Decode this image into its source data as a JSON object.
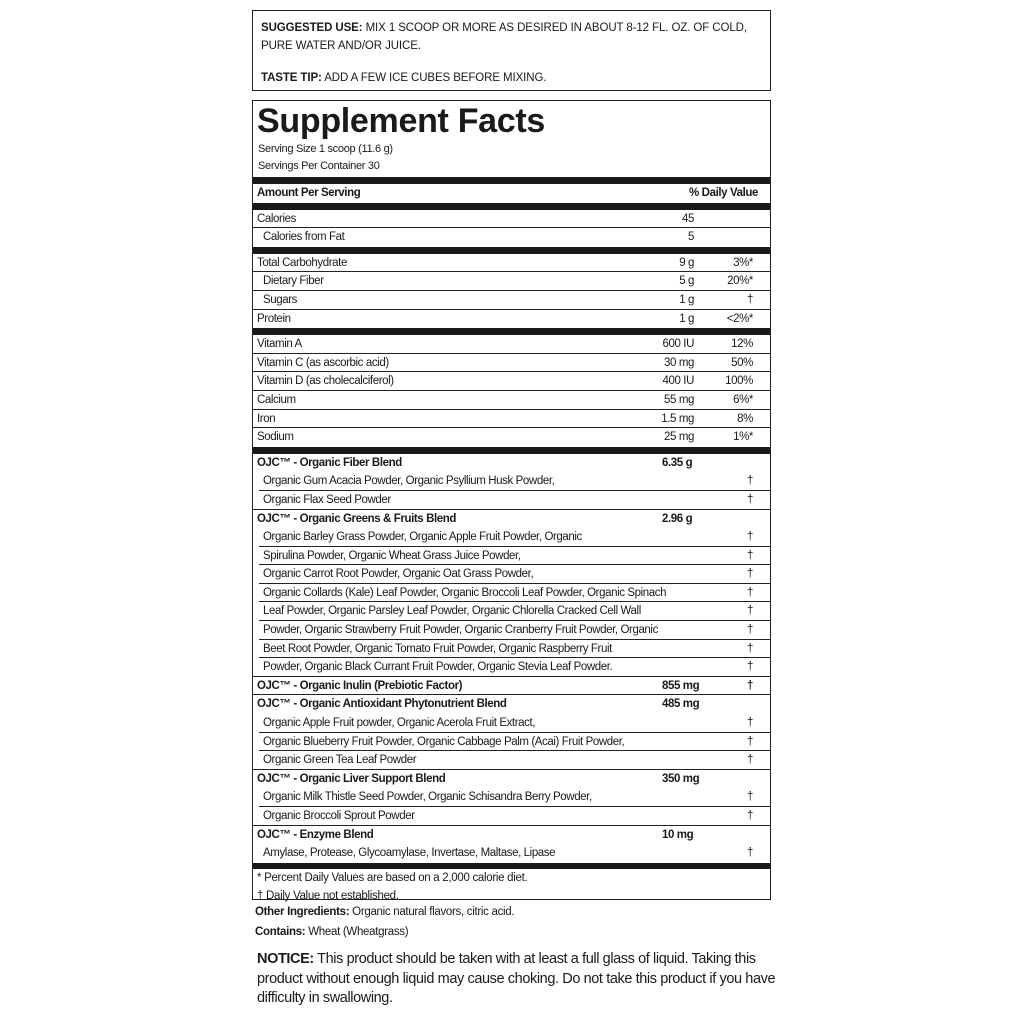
{
  "suggested_use": {
    "label": "SUGGESTED USE:",
    "text": " MIX 1 SCOOP OR MORE AS DESIRED IN ABOUT 8-12 FL. OZ. OF COLD, PURE WATER AND/OR JUICE."
  },
  "taste_tip": {
    "label": "TASTE TIP:",
    "text": " ADD A FEW ICE CUBES BEFORE MIXING."
  },
  "facts": {
    "title": "Supplement Facts",
    "serving_size": "Serving Size 1 scoop (11.6 g)",
    "servings_per_container": "Servings Per Container 30",
    "header": {
      "left": "Amount Per Serving",
      "right": "% Daily Value"
    },
    "groups": [
      [
        {
          "name": "Calories",
          "amount": "45",
          "dv": ""
        },
        {
          "name": "Calories from Fat",
          "amount": "5",
          "dv": "",
          "sub": true
        }
      ],
      [
        {
          "name": "Total Carbohydrate",
          "amount": "9 g",
          "dv": "3%*"
        },
        {
          "name": "Dietary Fiber",
          "amount": "5 g",
          "dv": "20%*",
          "sub": true
        },
        {
          "name": "Sugars",
          "amount": "1 g",
          "dv": "†",
          "sub": true
        },
        {
          "name": "Protein",
          "amount": "1 g",
          "dv": "<2%*"
        }
      ],
      [
        {
          "name": "Vitamin A",
          "amount": "600 IU",
          "dv": "12%"
        },
        {
          "name": "Vitamin C (as ascorbic acid)",
          "amount": "30 mg",
          "dv": "50%"
        },
        {
          "name": "Vitamin D (as cholecalciferol)",
          "amount": "400 IU",
          "dv": "100%"
        },
        {
          "name": "Calcium",
          "amount": "55 mg",
          "dv": "6%*"
        },
        {
          "name": "Iron",
          "amount": "1.5 mg",
          "dv": "8%"
        },
        {
          "name": "Sodium",
          "amount": "25 mg",
          "dv": "1%*"
        }
      ]
    ],
    "blends": [
      {
        "name": "OJC™ - Organic Fiber Blend",
        "amount": "6.35 g",
        "dv": "",
        "lines": [
          "Organic Gum Acacia Powder, Organic Psyllium Husk Powder,",
          "Organic Flax Seed Powder"
        ]
      },
      {
        "name": "OJC™ - Organic Greens & Fruits Blend",
        "amount": "2.96 g",
        "dv": "",
        "lines": [
          "Organic Barley Grass Powder, Organic Apple Fruit Powder, Organic",
          "Spirulina Powder, Organic Wheat Grass Juice Powder,",
          "Organic Carrot Root Powder, Organic Oat Grass Powder,",
          "Organic Collards (Kale) Leaf Powder, Organic Broccoli Leaf Powder, Organic Spinach",
          "Leaf Powder, Organic Parsley Leaf Powder, Organic Chlorella Cracked Cell Wall",
          "Powder, Organic Strawberry Fruit Powder, Organic Cranberry Fruit Powder, Organic",
          "Beet Root Powder, Organic Tomato Fruit Powder, Organic Raspberry Fruit",
          "Powder, Organic Black Currant Fruit Powder, Organic Stevia Leaf Powder."
        ]
      },
      {
        "name": "OJC™ - Organic Inulin (Prebiotic Factor)",
        "amount": "855 mg",
        "dv": "†",
        "lines": []
      },
      {
        "name": "OJC™ - Organic Antioxidant Phytonutrient Blend",
        "amount": "485 mg",
        "dv": "",
        "lines": [
          "Organic Apple Fruit powder, Organic Acerola Fruit Extract,",
          "Organic Blueberry Fruit Powder, Organic Cabbage Palm (Acai) Fruit Powder,",
          "Organic Green Tea Leaf Powder"
        ]
      },
      {
        "name": "OJC™ - Organic Liver Support Blend",
        "amount": "350 mg",
        "dv": "",
        "lines": [
          "Organic Milk Thistle Seed Powder, Organic Schisandra Berry Powder,",
          "Organic Broccoli Sprout Powder"
        ]
      },
      {
        "name": "OJC™ - Enzyme Blend",
        "amount": "10 mg",
        "dv": "",
        "lines": [
          "Amylase, Protease, Glycoamylase, Invertase, Maltase, Lipase"
        ]
      }
    ],
    "line_dv": "†",
    "footnote1": "* Percent Daily Values are based on a 2,000 calorie diet.",
    "footnote2": "† Daily Value not established."
  },
  "other_ingredients": {
    "label": "Other Ingredients:",
    "text": " Organic natural flavors, citric acid."
  },
  "contains": {
    "label": "Contains:",
    "text": " Wheat (Wheatgrass)"
  },
  "notice": {
    "label": "NOTICE:",
    "text": " This product should be taken with at least a full glass of liquid. Taking this product without enough liquid may cause choking. Do not take this product if you have difficulty in swallowing."
  }
}
